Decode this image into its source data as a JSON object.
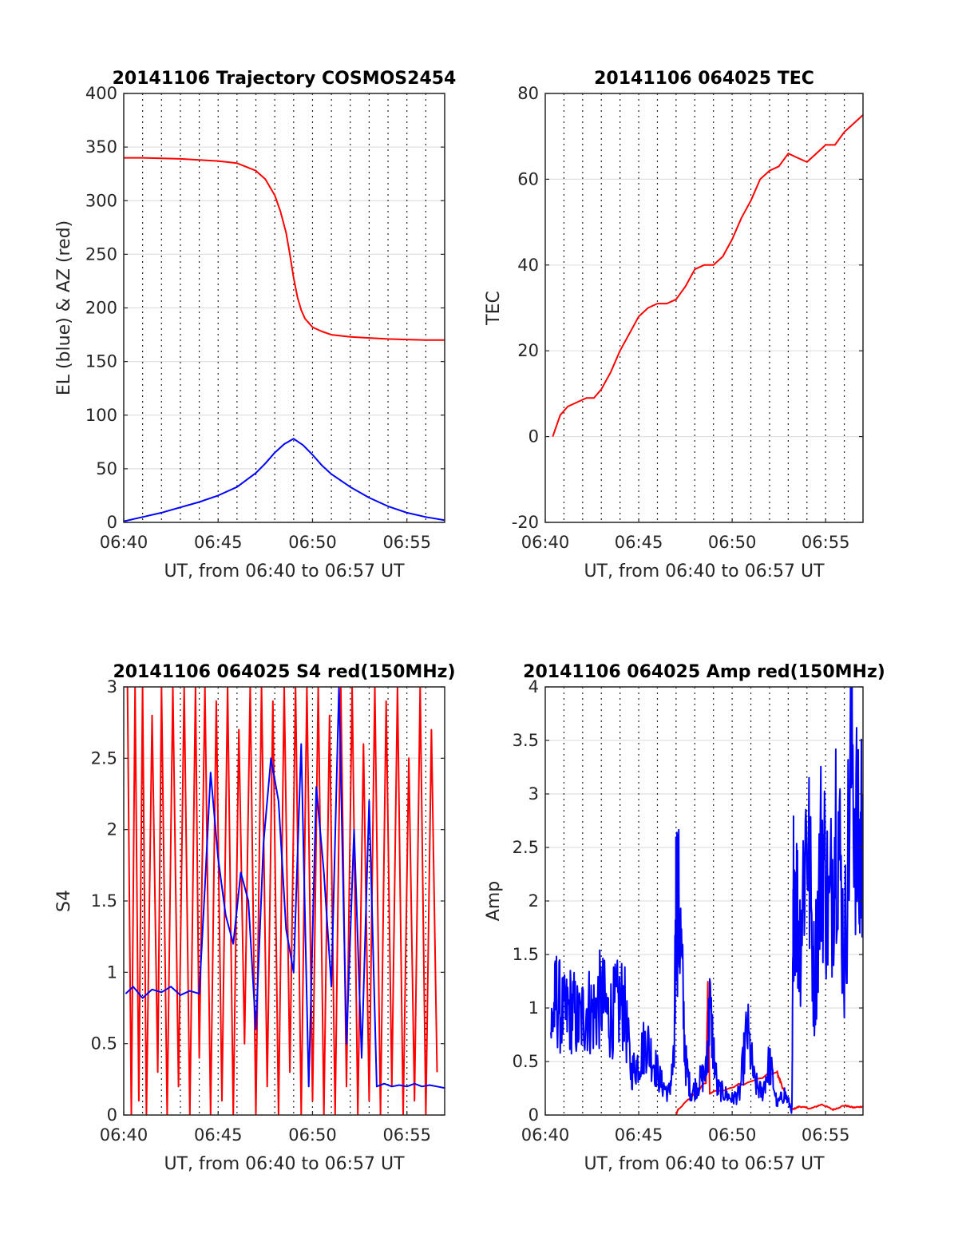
{
  "chart_data": [
    {
      "type": "line",
      "title": "20141106 Trajectory COSMOS2454",
      "xlabel": "UT, from 06:40 to 06:57 UT",
      "ylabel": "EL (blue) & AZ (red)",
      "xlim": [
        0,
        17
      ],
      "ylim": [
        0,
        400
      ],
      "xticks": [
        0,
        5,
        10,
        15
      ],
      "xtick_labels": [
        "06:40",
        "06:45",
        "06:50",
        "06:55"
      ],
      "yticks": [
        0,
        50,
        100,
        150,
        200,
        250,
        300,
        350,
        400
      ],
      "ytick_labels": [
        "0",
        "50",
        "100",
        "150",
        "200",
        "250",
        "300",
        "350",
        "400"
      ],
      "grid": true,
      "series": [
        {
          "color": "#ff0000",
          "x": [
            0,
            1,
            2,
            3,
            4,
            5,
            6,
            7,
            7.5,
            8,
            8.3,
            8.6,
            8.8,
            9.0,
            9.2,
            9.4,
            9.6,
            10,
            10.5,
            11,
            12,
            13,
            14,
            15,
            16,
            17
          ],
          "y": [
            340,
            340,
            339.5,
            339,
            338,
            337,
            335,
            328,
            320,
            305,
            290,
            270,
            250,
            228,
            210,
            198,
            190,
            182,
            178,
            175,
            173,
            172,
            171,
            170.5,
            170,
            170
          ]
        },
        {
          "color": "#0000ff",
          "x": [
            0,
            1,
            2,
            3,
            4,
            5,
            6,
            7,
            7.5,
            8,
            8.5,
            9,
            9.5,
            10,
            10.5,
            11,
            12,
            13,
            14,
            15,
            16,
            17
          ],
          "y": [
            1,
            5,
            9,
            14,
            19,
            25,
            33,
            46,
            55,
            65,
            73,
            78,
            72,
            63,
            53,
            45,
            33,
            23,
            15,
            9,
            5,
            2
          ]
        }
      ]
    },
    {
      "type": "line",
      "title": "20141106 064025 TEC",
      "xlabel": "UT, from 06:40 to 06:57 UT",
      "ylabel": "TEC",
      "xlim": [
        0,
        17
      ],
      "ylim": [
        -20,
        80
      ],
      "xticks": [
        0,
        5,
        10,
        15
      ],
      "xtick_labels": [
        "06:40",
        "06:45",
        "06:50",
        "06:55"
      ],
      "yticks": [
        -20,
        0,
        20,
        40,
        60,
        80
      ],
      "ytick_labels": [
        "-20",
        "0",
        "20",
        "40",
        "60",
        "80"
      ],
      "grid": true,
      "series": [
        {
          "color": "#ff0000",
          "x": [
            0.4,
            0.8,
            1.2,
            1.7,
            2.2,
            2.6,
            3,
            3.5,
            4,
            4.5,
            5,
            5.5,
            6,
            6.5,
            7,
            7.5,
            8,
            8.5,
            9,
            9.5,
            10,
            10.5,
            11,
            11.5,
            12,
            12.5,
            13,
            13.5,
            14,
            14.5,
            15,
            15.5,
            16,
            16.5,
            17
          ],
          "y": [
            0,
            5,
            7,
            8,
            9,
            9,
            11,
            15,
            20,
            24,
            28,
            30,
            31,
            31,
            32,
            35,
            39,
            40,
            40,
            42,
            46,
            51,
            55,
            60,
            62,
            63,
            66,
            65,
            64,
            66,
            68,
            68,
            71,
            73,
            75
          ]
        }
      ]
    },
    {
      "type": "line",
      "title": "20141106 064025 S4 red(150MHz)",
      "xlabel": "UT, from 06:40 to 06:57 UT",
      "ylabel": "S4",
      "xlim": [
        0,
        17
      ],
      "ylim": [
        0,
        3
      ],
      "xticks": [
        0,
        5,
        10,
        15
      ],
      "xtick_labels": [
        "06:40",
        "06:45",
        "06:50",
        "06:55"
      ],
      "yticks": [
        0,
        0.5,
        1,
        1.5,
        2,
        2.5,
        3
      ],
      "ytick_labels": [
        "0",
        "0.5",
        "1",
        "1.5",
        "2",
        "2.5",
        "3"
      ],
      "grid": true,
      "series": [
        {
          "color": "#ff0000",
          "x": [
            0.2,
            0.4,
            0.6,
            0.8,
            1.0,
            1.2,
            1.5,
            1.8,
            2.0,
            2.3,
            2.6,
            2.9,
            3.2,
            3.5,
            3.8,
            4.0,
            4.3,
            4.6,
            4.9,
            5.2,
            5.5,
            5.8,
            6.1,
            6.4,
            6.7,
            7.0,
            7.3,
            7.6,
            7.9,
            8.2,
            8.5,
            8.8,
            9.1,
            9.4,
            9.7,
            10.0,
            10.3,
            10.6,
            10.9,
            11.2,
            11.5,
            11.8,
            12.1,
            12.4,
            12.7,
            13.0,
            13.3,
            13.6,
            13.9,
            14.2,
            14.5,
            14.8,
            15.1,
            15.4,
            15.7,
            16.0,
            16.3,
            16.6
          ],
          "y": [
            3,
            0,
            3,
            0.1,
            3,
            0,
            2.8,
            0.3,
            3,
            0,
            3,
            0.2,
            3,
            0,
            3,
            0.4,
            3,
            0,
            2.9,
            0.1,
            3,
            0,
            2.7,
            0.5,
            3,
            0,
            3,
            0.2,
            2.9,
            0,
            3,
            0.3,
            3,
            0,
            3,
            0.1,
            3,
            0,
            2.8,
            0,
            3,
            0.2,
            3,
            0,
            2.6,
            0.1,
            3,
            0,
            2.9,
            0.2,
            3,
            0,
            2.5,
            0.1,
            3,
            0,
            2.7,
            0.3
          ]
        },
        {
          "color": "#0000ff",
          "x": [
            0.1,
            0.5,
            1.0,
            1.5,
            2.0,
            2.5,
            3.0,
            3.5,
            4.0,
            4.3,
            4.6,
            5.0,
            5.4,
            5.8,
            6.2,
            6.6,
            7.0,
            7.4,
            7.8,
            8.2,
            8.6,
            9.0,
            9.4,
            9.8,
            10.2,
            10.6,
            11.0,
            11.4,
            11.8,
            12.2,
            12.6,
            13.0,
            13.4,
            13.8,
            14.2,
            14.6,
            15.0,
            15.4,
            15.8,
            16.2,
            16.6,
            17.0
          ],
          "y": [
            0.85,
            0.9,
            0.82,
            0.88,
            0.86,
            0.9,
            0.84,
            0.87,
            0.85,
            1.6,
            2.4,
            1.8,
            1.4,
            1.2,
            1.7,
            1.5,
            0.6,
            1.9,
            2.5,
            2.2,
            1.3,
            1.0,
            2.6,
            0.2,
            2.3,
            1.7,
            0.9,
            3.0,
            0.5,
            2.0,
            0.4,
            2.2,
            0.2,
            0.22,
            0.2,
            0.21,
            0.2,
            0.22,
            0.2,
            0.21,
            0.2,
            0.19
          ]
        }
      ]
    },
    {
      "type": "line",
      "title": "20141106 064025 Amp red(150MHz)",
      "xlabel": "UT, from 06:40 to 06:57 UT",
      "ylabel": "Amp",
      "xlim": [
        0,
        17
      ],
      "ylim": [
        0,
        4
      ],
      "xticks": [
        0,
        5,
        10,
        15
      ],
      "xtick_labels": [
        "06:40",
        "06:45",
        "06:50",
        "06:55"
      ],
      "yticks": [
        0,
        0.5,
        1,
        1.5,
        2,
        2.5,
        3,
        3.5,
        4
      ],
      "ytick_labels": [
        "0",
        "0.5",
        "1",
        "1.5",
        "2",
        "2.5",
        "3",
        "3.5",
        "4"
      ],
      "grid": true,
      "series": [
        {
          "color": "#ff0000",
          "x": [
            7.0,
            7.1,
            8.6,
            8.7,
            8.8,
            12.4,
            12.6,
            13.2,
            13.6,
            14.2,
            14.8,
            15.4,
            16.0,
            16.5,
            17.0
          ],
          "y": [
            0,
            0.05,
            0.3,
            1.2,
            0.2,
            0.4,
            0.3,
            0.05,
            0.08,
            0.06,
            0.1,
            0.05,
            0.09,
            0.07,
            0.08
          ],
          "noise_amp": 0.06
        },
        {
          "color": "#0000ff",
          "x": [
            0.3,
            0.6,
            1.0,
            1.4,
            1.8,
            2.2,
            2.6,
            3.0,
            3.4,
            3.8,
            4.2,
            4.6,
            5.0,
            5.4,
            5.8,
            6.2,
            6.6,
            6.9,
            7.0,
            7.2,
            7.5,
            7.8,
            8.2,
            8.6,
            8.8,
            9.2,
            9.6,
            10.0,
            10.4,
            10.8,
            11.2,
            11.6,
            12.0,
            12.4,
            12.8,
            13.2,
            13.3,
            13.6,
            14.0,
            14.4,
            14.8,
            15.2,
            15.6,
            16.0,
            16.4,
            16.8,
            17.0
          ],
          "y": [
            0.8,
            1.1,
            0.9,
            1.0,
            0.85,
            1.0,
            0.95,
            1.1,
            0.9,
            1.0,
            1.05,
            0.4,
            0.5,
            0.7,
            0.5,
            0.3,
            0.2,
            0.5,
            2.1,
            1.8,
            0.5,
            0.2,
            0.3,
            0.4,
            1.0,
            0.25,
            0.2,
            0.15,
            0.2,
            0.8,
            0.3,
            0.2,
            0.5,
            0.1,
            0.2,
            0.05,
            2.4,
            1.6,
            2.8,
            1.2,
            2.6,
            1.8,
            3.0,
            1.4,
            3.5,
            2.2,
            3.0
          ],
          "noise_amp": 0.45
        }
      ]
    }
  ]
}
